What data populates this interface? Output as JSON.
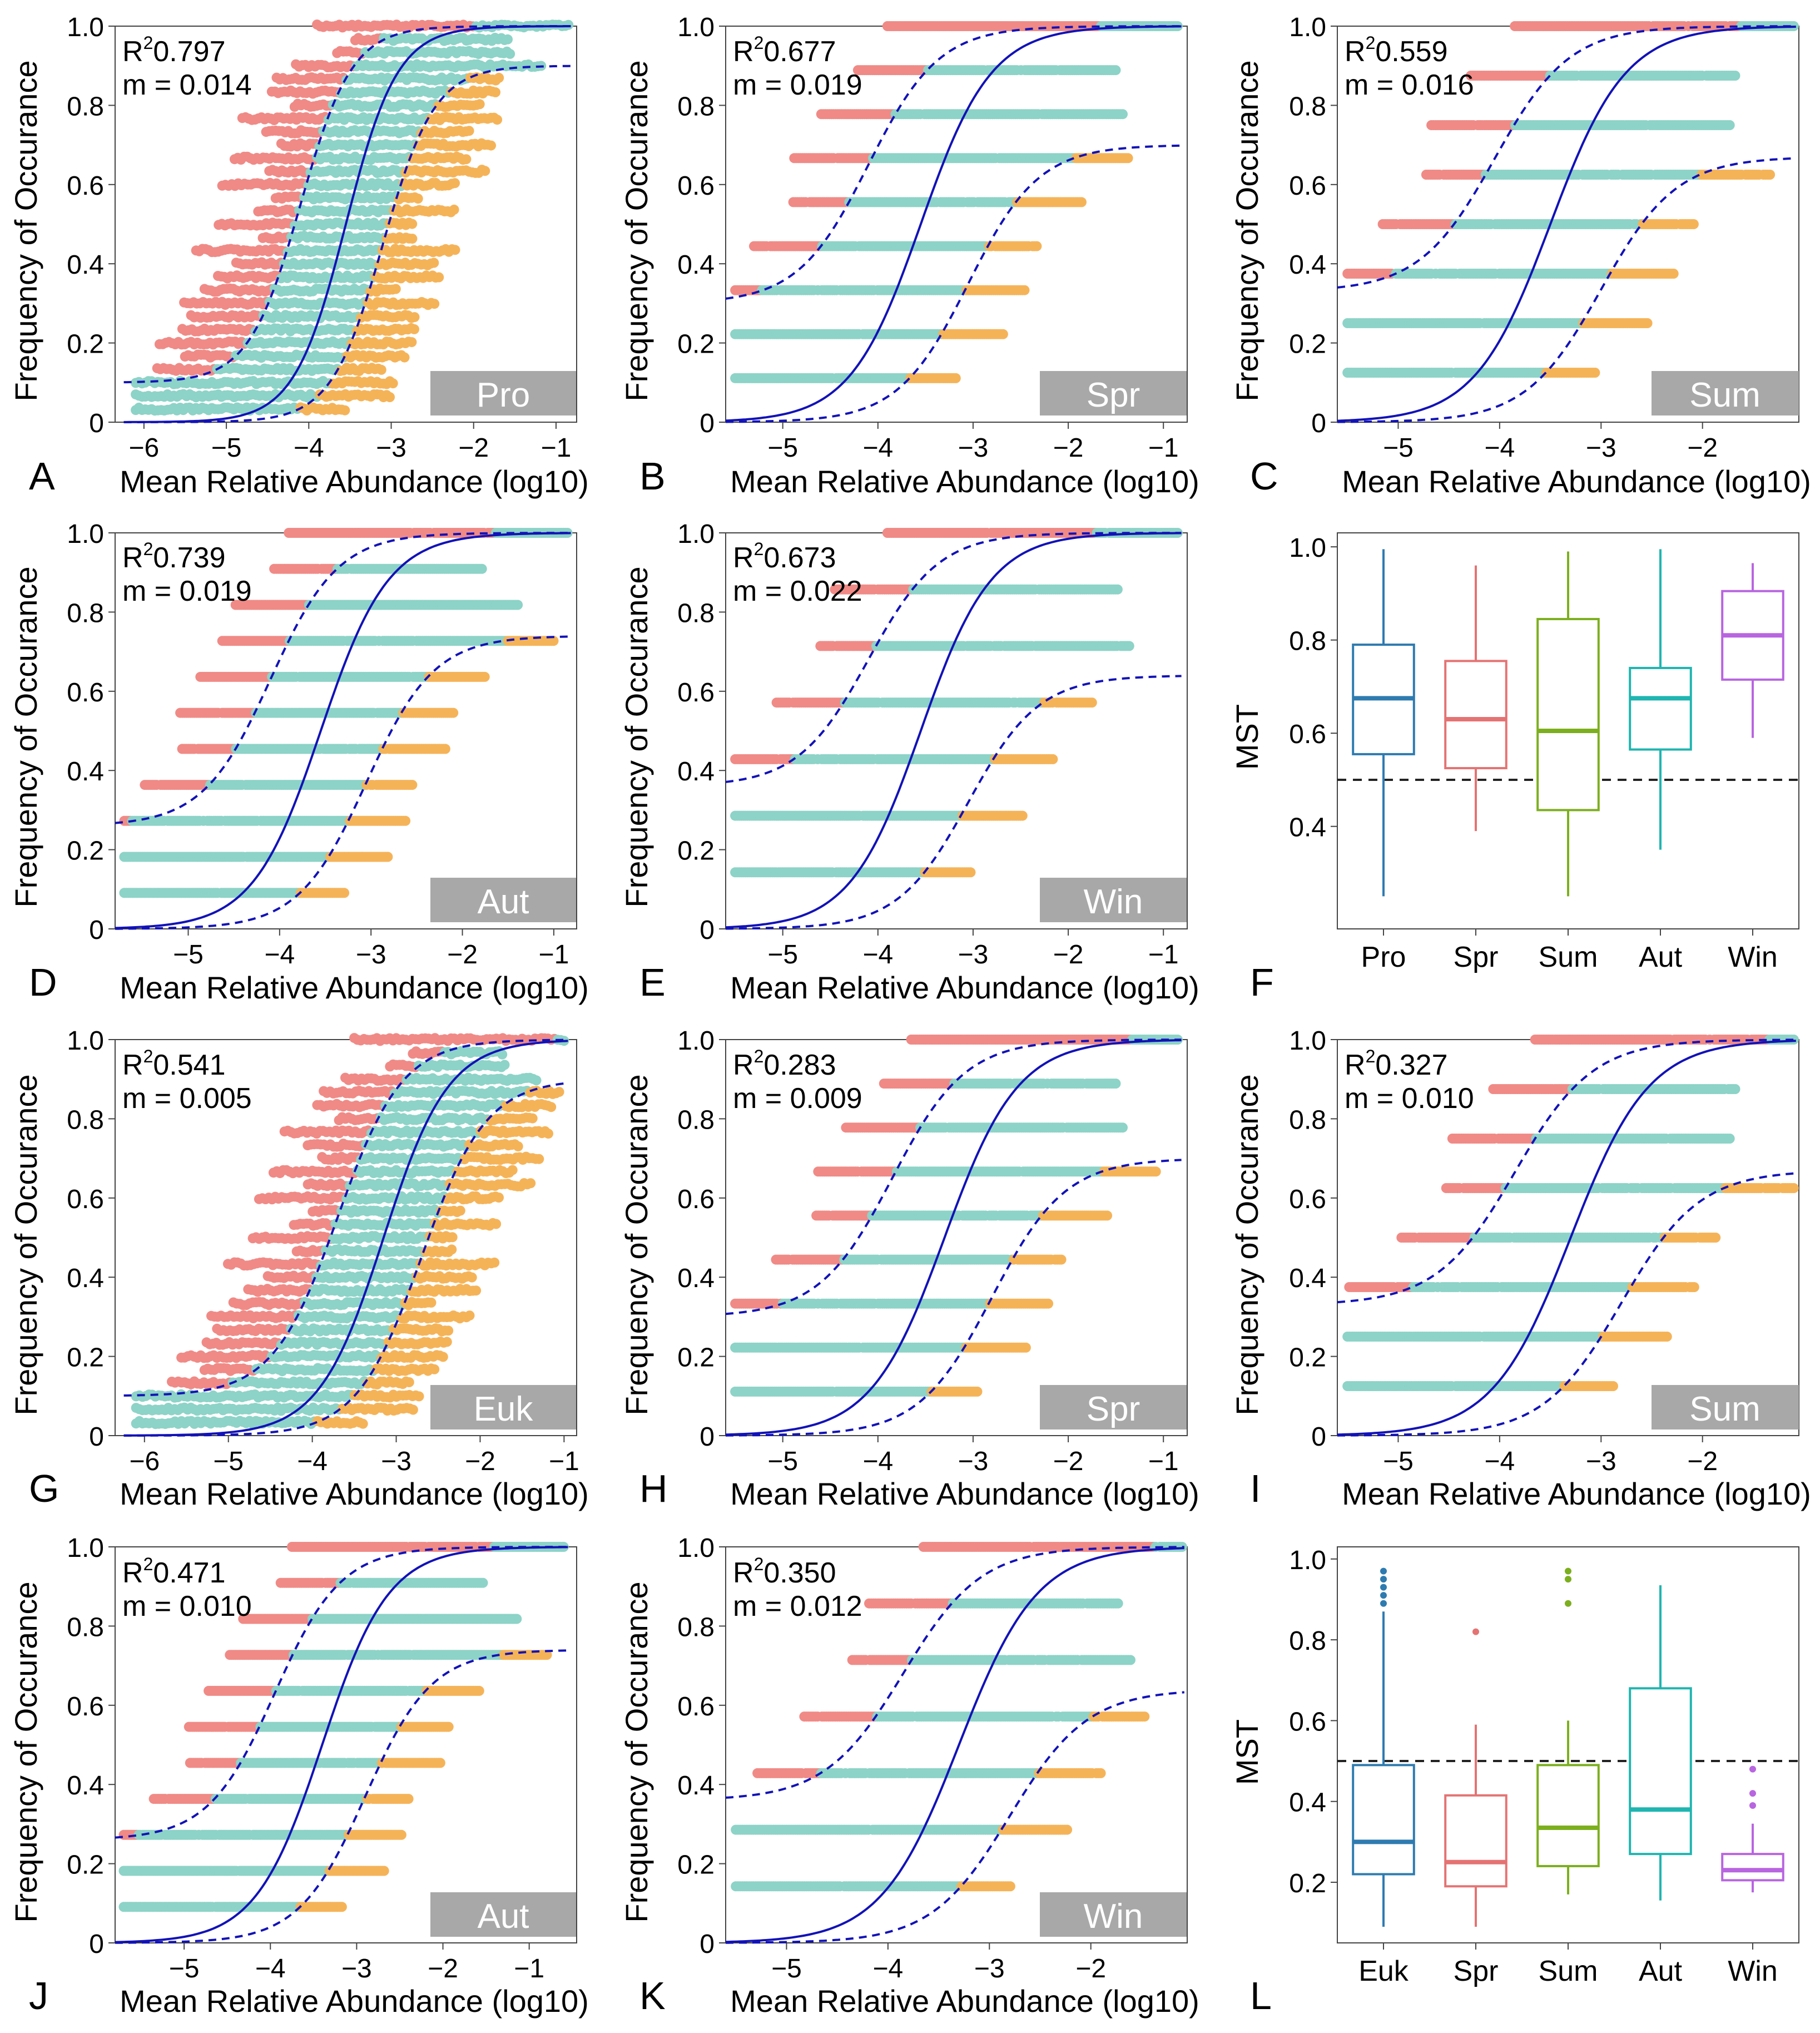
{
  "figure": {
    "colors": {
      "above": "#F08A86",
      "within": "#8DD3C7",
      "below": "#F5B358",
      "fit": "#1212B8",
      "tag_bg": "#A8A8A8",
      "tag_fg": "#FFFFFF"
    },
    "common": {
      "xlabel": "Mean Relative Abundance (log10)",
      "ylabel": "Frequency of Occurance",
      "mst_ylabel": "MST"
    }
  },
  "chart_data": [
    {
      "type": "scatter",
      "id": "A",
      "panel_label": "A",
      "tag": "Pro",
      "r2": "0.797",
      "m": "0.014",
      "xlim": [
        -6.35,
        -0.75
      ],
      "ylim": [
        0,
        1
      ],
      "xticks": [
        -6,
        -5,
        -4,
        -3,
        -2,
        -1
      ],
      "yticks": [
        0,
        0.2,
        0.4,
        0.6,
        0.8,
        1.0
      ],
      "x_min": -6.1,
      "x_max": -0.85,
      "mid": -3.55,
      "slope": 3.2,
      "upper_offset": 0.55,
      "lower_offset": 0.45,
      "lower_asym": 0.9,
      "upper_floor": 0.1,
      "nlevels": 30,
      "cloud": true
    },
    {
      "type": "scatter",
      "id": "B",
      "panel_label": "B",
      "tag": "Spr",
      "r2": "0.677",
      "m": "0.019",
      "xlim": [
        -5.6,
        -0.75
      ],
      "ylim": [
        0,
        1
      ],
      "xticks": [
        -5,
        -4,
        -3,
        -2,
        -1
      ],
      "yticks": [
        0,
        0.2,
        0.4,
        0.6,
        0.8,
        1.0
      ],
      "x_min": -5.5,
      "x_max": -0.85,
      "mid": -3.55,
      "slope": 2.7,
      "upper_offset": 0.55,
      "lower_offset": 0.5,
      "lower_asym": 0.7,
      "upper_floor": 0.3,
      "nlevels": 9,
      "cloud": false
    },
    {
      "type": "scatter",
      "id": "C",
      "panel_label": "C",
      "tag": "Sum",
      "r2": "0.559",
      "m": "0.016",
      "xlim": [
        -5.6,
        -1.05
      ],
      "ylim": [
        0,
        1
      ],
      "xticks": [
        -5,
        -4,
        -3,
        -2
      ],
      "yticks": [
        0,
        0.2,
        0.4,
        0.6,
        0.8,
        1.0
      ],
      "x_min": -5.5,
      "x_max": -1.1,
      "mid": -3.5,
      "slope": 2.7,
      "upper_offset": 0.55,
      "lower_offset": 0.5,
      "lower_asym": 0.67,
      "upper_floor": 0.33,
      "nlevels": 8,
      "cloud": false
    },
    {
      "type": "scatter",
      "id": "D",
      "panel_label": "D",
      "tag": "Aut",
      "r2": "0.739",
      "m": "0.019",
      "xlim": [
        -5.8,
        -0.75
      ],
      "ylim": [
        0,
        1
      ],
      "xticks": [
        -5,
        -4,
        -3,
        -2,
        -1
      ],
      "yticks": [
        0,
        0.2,
        0.4,
        0.6,
        0.8,
        1.0
      ],
      "x_min": -5.7,
      "x_max": -0.85,
      "mid": -3.55,
      "slope": 2.7,
      "upper_offset": 0.55,
      "lower_offset": 0.5,
      "lower_asym": 0.74,
      "upper_floor": 0.26,
      "nlevels": 11,
      "cloud": false
    },
    {
      "type": "scatter",
      "id": "E",
      "panel_label": "E",
      "tag": "Win",
      "r2": "0.673",
      "m": "0.022",
      "xlim": [
        -5.6,
        -0.75
      ],
      "ylim": [
        0,
        1
      ],
      "xticks": [
        -5,
        -4,
        -3,
        -2,
        -1
      ],
      "yticks": [
        0,
        0.2,
        0.4,
        0.6,
        0.8,
        1.0
      ],
      "x_min": -5.5,
      "x_max": -0.85,
      "mid": -3.55,
      "slope": 2.7,
      "upper_offset": 0.55,
      "lower_offset": 0.5,
      "lower_asym": 0.64,
      "upper_floor": 0.36,
      "nlevels": 7,
      "cloud": false
    },
    {
      "type": "box",
      "id": "F",
      "panel_label": "F",
      "ylabel": "MST",
      "ylim": [
        0.18,
        1.03
      ],
      "yticks": [
        0.4,
        0.6,
        0.8,
        1.0
      ],
      "threshold": 0.5,
      "categories": [
        "Pro",
        "Spr",
        "Sum",
        "Aut",
        "Win"
      ],
      "colors": [
        "#2E7BB0",
        "#E57373",
        "#7CAF1E",
        "#1FB5B0",
        "#B865E0"
      ],
      "boxes": [
        {
          "min": 0.25,
          "q1": 0.555,
          "median": 0.675,
          "q3": 0.79,
          "max": 0.995,
          "outliers": []
        },
        {
          "min": 0.39,
          "q1": 0.525,
          "median": 0.63,
          "q3": 0.755,
          "max": 0.96,
          "outliers": []
        },
        {
          "min": 0.25,
          "q1": 0.435,
          "median": 0.605,
          "q3": 0.845,
          "max": 0.99,
          "outliers": []
        },
        {
          "min": 0.35,
          "q1": 0.565,
          "median": 0.675,
          "q3": 0.74,
          "max": 0.995,
          "outliers": []
        },
        {
          "min": 0.59,
          "q1": 0.715,
          "median": 0.81,
          "q3": 0.905,
          "max": 0.965,
          "outliers": []
        }
      ]
    },
    {
      "type": "scatter",
      "id": "G",
      "panel_label": "G",
      "tag": "Euk",
      "r2": "0.541",
      "m": "0.005",
      "xlim": [
        -6.35,
        -0.85
      ],
      "ylim": [
        0,
        1
      ],
      "xticks": [
        -6,
        -5,
        -4,
        -3,
        -2,
        -1
      ],
      "yticks": [
        0,
        0.2,
        0.4,
        0.6,
        0.8,
        1.0
      ],
      "x_min": -6.1,
      "x_max": -1.0,
      "mid": -3.15,
      "slope": 2.6,
      "upper_offset": 0.55,
      "lower_offset": 0.45,
      "lower_asym": 0.9,
      "upper_floor": 0.1,
      "nlevels": 30,
      "cloud": true
    },
    {
      "type": "scatter",
      "id": "H",
      "panel_label": "H",
      "tag": "Spr",
      "r2": "0.283",
      "m": "0.009",
      "xlim": [
        -5.6,
        -0.75
      ],
      "ylim": [
        0,
        1
      ],
      "xticks": [
        -5,
        -4,
        -3,
        -2,
        -1
      ],
      "yticks": [
        0,
        0.2,
        0.4,
        0.6,
        0.8,
        1.0
      ],
      "x_min": -5.5,
      "x_max": -0.85,
      "mid": -3.3,
      "slope": 2.6,
      "upper_offset": 0.55,
      "lower_offset": 0.5,
      "lower_asym": 0.7,
      "upper_floor": 0.3,
      "nlevels": 9,
      "cloud": false
    },
    {
      "type": "scatter",
      "id": "I",
      "panel_label": "I",
      "tag": "Sum",
      "r2": "0.327",
      "m": "0.010",
      "xlim": [
        -5.6,
        -1.05
      ],
      "ylim": [
        0,
        1
      ],
      "xticks": [
        -5,
        -4,
        -3,
        -2
      ],
      "yticks": [
        0,
        0.2,
        0.4,
        0.6,
        0.8,
        1.0
      ],
      "x_min": -5.5,
      "x_max": -1.1,
      "mid": -3.3,
      "slope": 2.6,
      "upper_offset": 0.55,
      "lower_offset": 0.5,
      "lower_asym": 0.67,
      "upper_floor": 0.33,
      "nlevels": 8,
      "cloud": false
    },
    {
      "type": "scatter",
      "id": "J",
      "panel_label": "J",
      "tag": "Aut",
      "r2": "0.471",
      "m": "0.010",
      "xlim": [
        -5.8,
        -0.45
      ],
      "ylim": [
        0,
        1
      ],
      "xticks": [
        -5,
        -4,
        -3,
        -2,
        -1
      ],
      "yticks": [
        0,
        0.2,
        0.4,
        0.6,
        0.8,
        1.0
      ],
      "x_min": -5.7,
      "x_max": -0.6,
      "mid": -3.4,
      "slope": 2.6,
      "upper_offset": 0.55,
      "lower_offset": 0.5,
      "lower_asym": 0.74,
      "upper_floor": 0.26,
      "nlevels": 11,
      "cloud": false
    },
    {
      "type": "scatter",
      "id": "K",
      "panel_label": "K",
      "tag": "Win",
      "r2": "0.350",
      "m": "0.012",
      "xlim": [
        -5.6,
        -1.05
      ],
      "ylim": [
        0,
        1
      ],
      "xticks": [
        -5,
        -4,
        -3,
        -2
      ],
      "yticks": [
        0,
        0.2,
        0.4,
        0.6,
        0.8,
        1.0
      ],
      "x_min": -5.5,
      "x_max": -1.1,
      "mid": -3.3,
      "slope": 2.6,
      "upper_offset": 0.55,
      "lower_offset": 0.5,
      "lower_asym": 0.64,
      "upper_floor": 0.36,
      "nlevels": 7,
      "cloud": false
    },
    {
      "type": "box",
      "id": "L",
      "panel_label": "L",
      "ylabel": "MST",
      "ylim": [
        0.05,
        1.03
      ],
      "yticks": [
        0.2,
        0.4,
        0.6,
        0.8,
        1.0
      ],
      "threshold": 0.5,
      "categories": [
        "Euk",
        "Spr",
        "Sum",
        "Aut",
        "Win"
      ],
      "colors": [
        "#2E7BB0",
        "#E57373",
        "#7CAF1E",
        "#1FB5B0",
        "#B865E0"
      ],
      "boxes": [
        {
          "min": 0.09,
          "q1": 0.22,
          "median": 0.3,
          "q3": 0.49,
          "max": 0.87,
          "outliers": [
            0.89,
            0.91,
            0.93,
            0.95,
            0.97
          ]
        },
        {
          "min": 0.09,
          "q1": 0.19,
          "median": 0.25,
          "q3": 0.415,
          "max": 0.59,
          "outliers": [
            0.82
          ]
        },
        {
          "min": 0.17,
          "q1": 0.24,
          "median": 0.335,
          "q3": 0.49,
          "max": 0.6,
          "outliers": [
            0.89,
            0.95,
            0.97
          ]
        },
        {
          "min": 0.155,
          "q1": 0.27,
          "median": 0.38,
          "q3": 0.68,
          "max": 0.935,
          "outliers": []
        },
        {
          "min": 0.175,
          "q1": 0.205,
          "median": 0.23,
          "q3": 0.27,
          "max": 0.345,
          "outliers": [
            0.39,
            0.42,
            0.48
          ]
        }
      ]
    }
  ]
}
